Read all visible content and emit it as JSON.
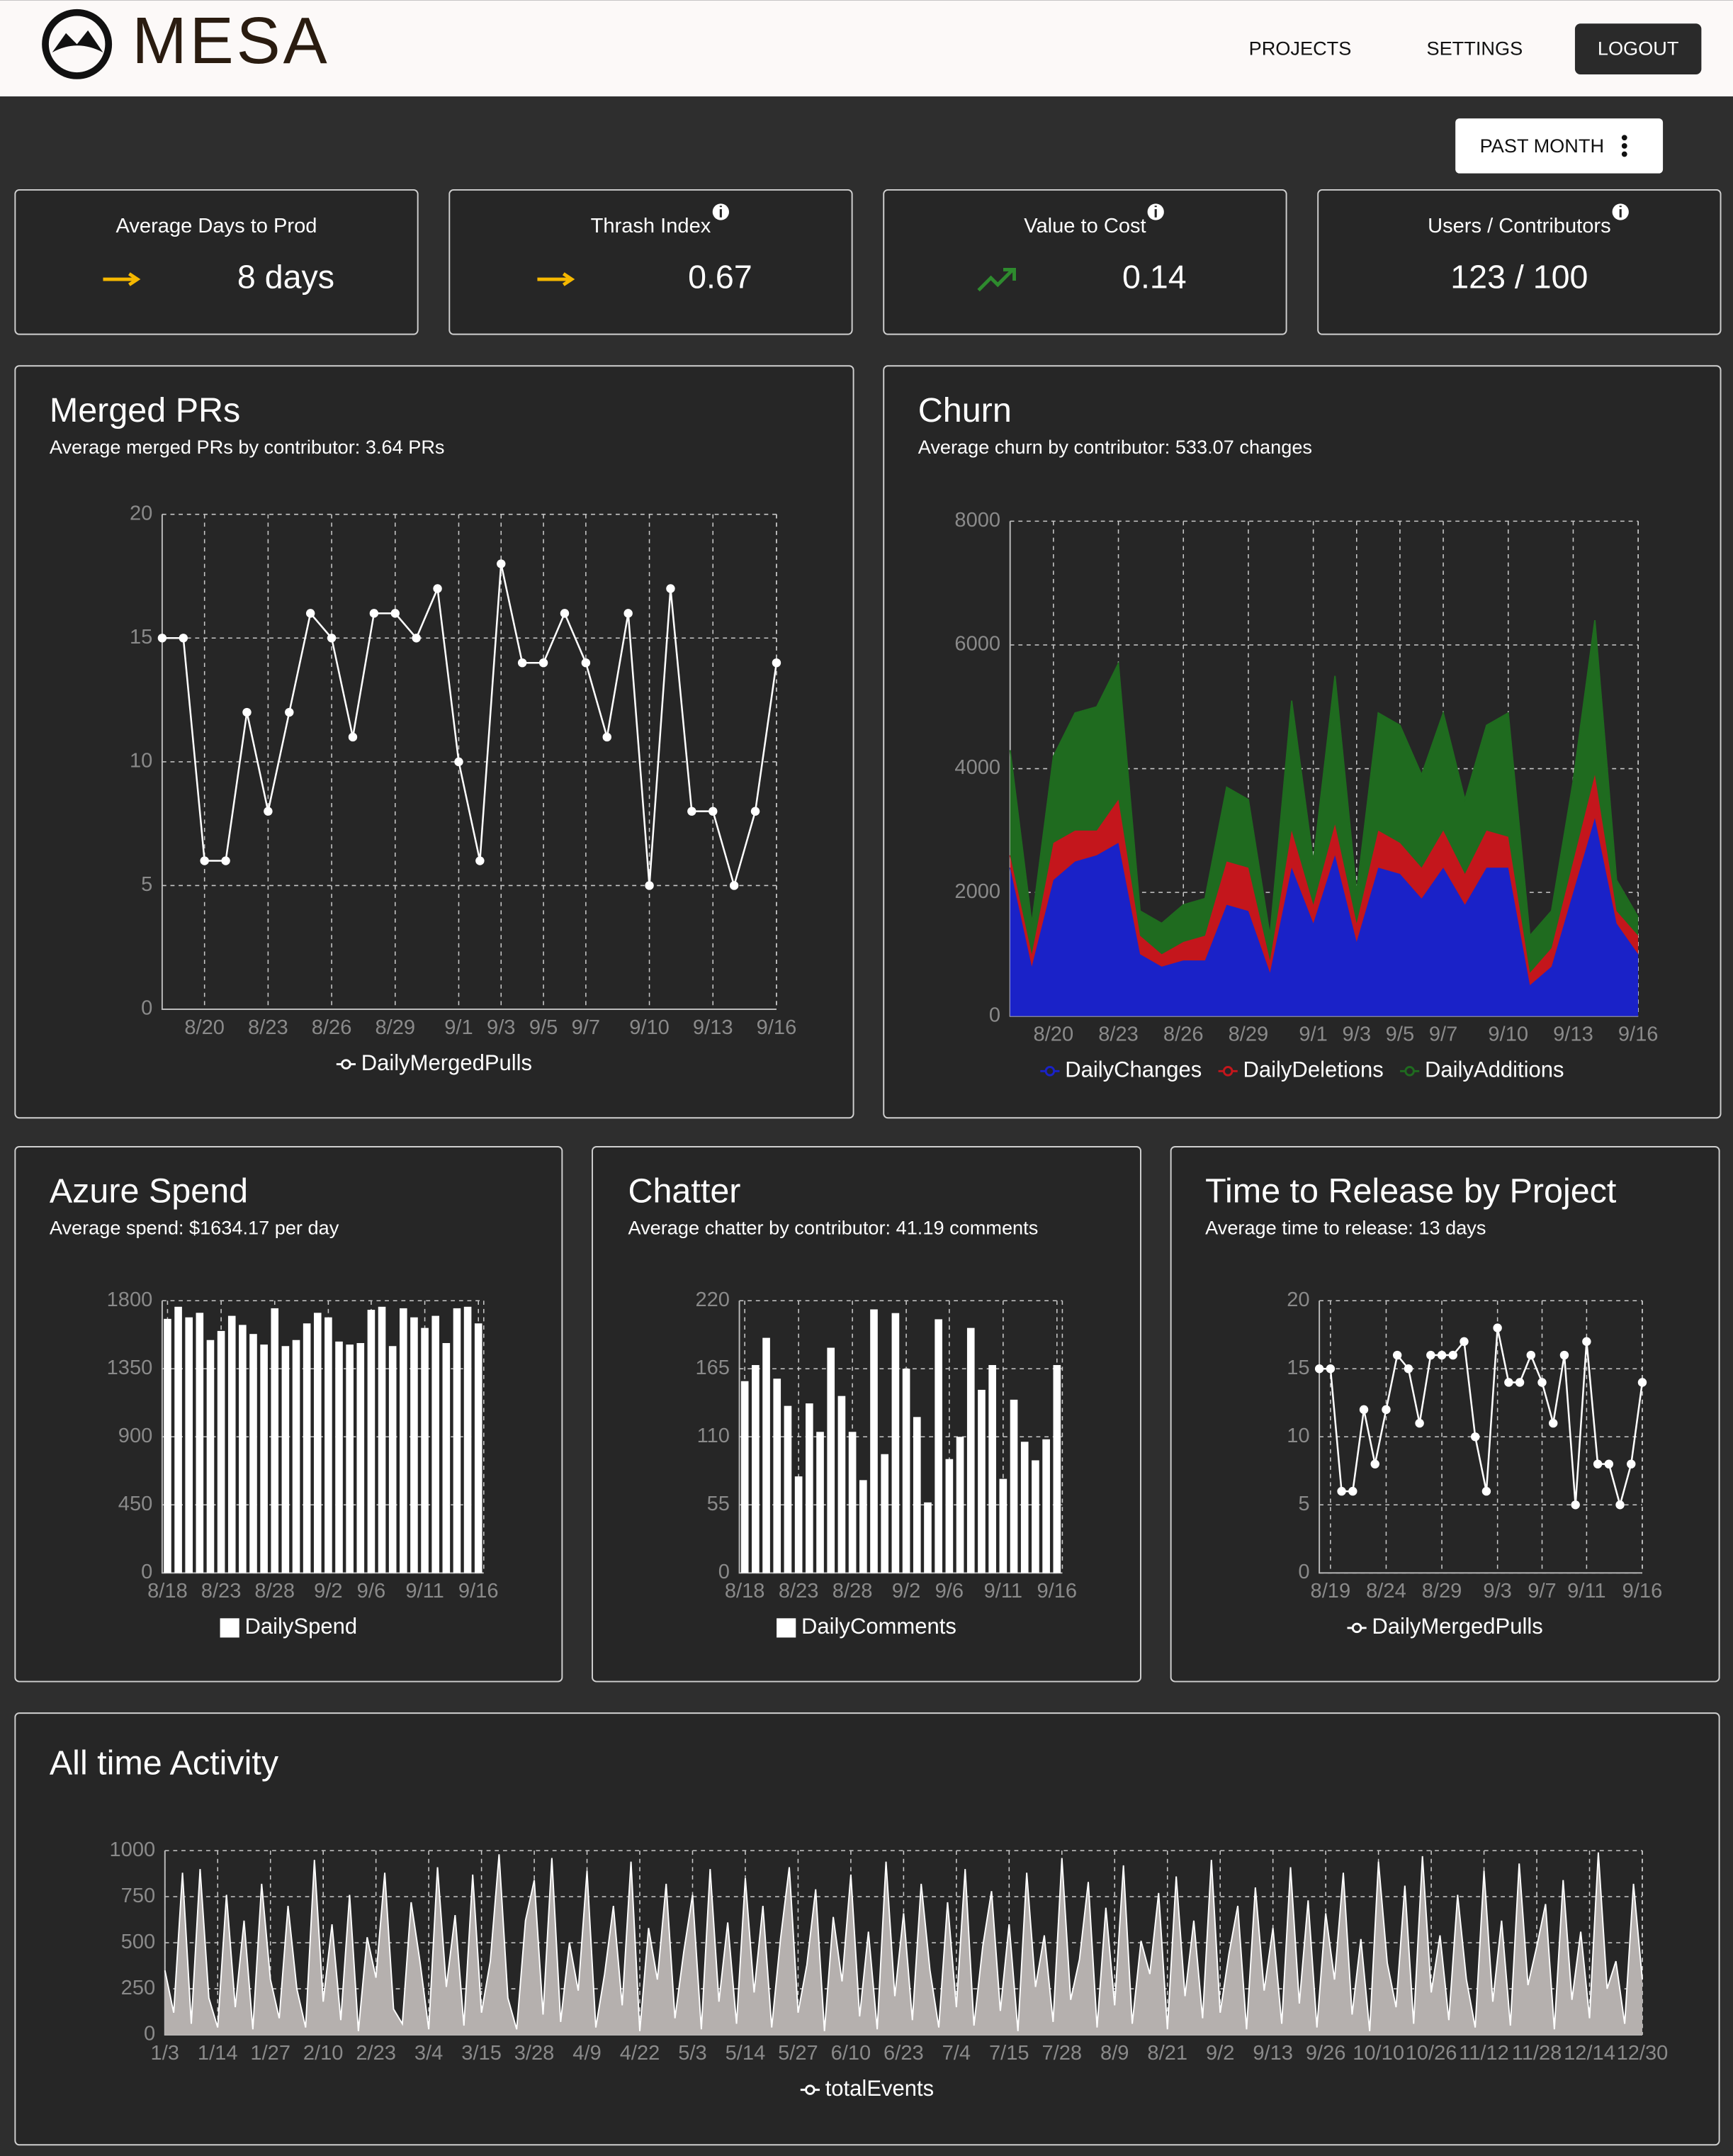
{
  "header": {
    "logo": "MESA",
    "nav": [
      "PROJECTS",
      "SETTINGS",
      "LOGOUT"
    ]
  },
  "filter": "PAST MONTH",
  "kpis": [
    {
      "label": "Average Days to Prod",
      "value": "8 days"
    },
    {
      "label": "Thrash Index",
      "value": "0.67"
    },
    {
      "label": "Value to Cost",
      "value": "0.14"
    },
    {
      "label": "Users / Contributors",
      "value": "123 / 100"
    }
  ],
  "charts": [
    {
      "type": "line",
      "title": "Merged PRs",
      "subtitle": "Average merged PRs by contributor: 3.64 PRs",
      "categories": [
        null,
        null,
        "8/20",
        null,
        null,
        "8/23",
        null,
        null,
        "8/26",
        null,
        null,
        "8/29",
        null,
        null,
        "9/1",
        null,
        "9/3",
        null,
        "9/5",
        null,
        "9/7",
        null,
        null,
        "9/10",
        null,
        null,
        "9/13",
        null,
        null,
        "9/16"
      ],
      "series": [
        {
          "name": "DailyMergedPulls",
          "color": "#ffffff",
          "values": [
            15,
            15,
            6,
            6,
            12,
            8,
            12,
            16,
            15,
            11,
            16,
            16,
            15,
            17,
            10,
            6,
            18,
            14,
            14,
            16,
            14,
            11,
            16,
            5,
            17,
            8,
            8,
            5,
            8,
            14
          ]
        }
      ],
      "ylim": [
        0,
        20
      ],
      "yticks": [
        0,
        5,
        10,
        15,
        20
      ],
      "grid": true
    },
    {
      "type": "area",
      "stacked": true,
      "title": "Churn",
      "subtitle": "Average churn by contributor: 533.07 changes",
      "categories": [
        null,
        null,
        "8/20",
        null,
        null,
        "8/23",
        null,
        null,
        "8/26",
        null,
        null,
        "8/29",
        null,
        null,
        "9/1",
        null,
        "9/3",
        null,
        "9/5",
        null,
        "9/7",
        null,
        null,
        "9/10",
        null,
        null,
        "9/13",
        null,
        null,
        "9/16"
      ],
      "series": [
        {
          "name": "DailyChanges",
          "color": "#1a22c8",
          "values": [
            2400,
            800,
            2200,
            2500,
            2600,
            2800,
            1000,
            800,
            900,
            900,
            1800,
            1700,
            700,
            2400,
            1500,
            2600,
            1200,
            2400,
            2300,
            1900,
            2400,
            1800,
            2400,
            2400,
            500,
            800,
            2000,
            3200,
            1500,
            1000
          ]
        },
        {
          "name": "DailyDeletions",
          "color": "#c4161c",
          "values": [
            200,
            200,
            600,
            500,
            400,
            700,
            300,
            200,
            300,
            400,
            700,
            700,
            200,
            600,
            300,
            500,
            300,
            600,
            500,
            500,
            600,
            500,
            600,
            500,
            200,
            300,
            500,
            700,
            200,
            300
          ]
        },
        {
          "name": "DailyAdditions",
          "color": "#1f6b1f",
          "values": [
            1700,
            500,
            1400,
            1900,
            2000,
            2200,
            400,
            500,
            600,
            600,
            1200,
            1100,
            400,
            2100,
            700,
            2400,
            500,
            1900,
            1900,
            1500,
            1900,
            1200,
            1700,
            2000,
            600,
            600,
            1300,
            2500,
            500,
            300
          ]
        }
      ],
      "ylim": [
        0,
        8000
      ],
      "yticks": [
        0,
        2000,
        4000,
        6000,
        8000
      ],
      "grid": true
    },
    {
      "type": "bar",
      "title": "Azure Spend",
      "subtitle": "Average spend: $1634.17 per day",
      "categories": [
        "8/18",
        null,
        null,
        null,
        null,
        "8/23",
        null,
        null,
        null,
        null,
        "8/28",
        null,
        null,
        null,
        null,
        "9/2",
        null,
        null,
        null,
        "9/6",
        null,
        null,
        null,
        null,
        "9/11",
        null,
        null,
        null,
        null,
        "9/16"
      ],
      "series": [
        {
          "name": "DailySpend",
          "color": "#ffffff",
          "values": [
            1680,
            1760,
            1690,
            1720,
            1540,
            1600,
            1700,
            1640,
            1580,
            1510,
            1750,
            1500,
            1540,
            1650,
            1720,
            1690,
            1530,
            1510,
            1520,
            1740,
            1760,
            1500,
            1750,
            1690,
            1620,
            1700,
            1520,
            1750,
            1760,
            1650
          ]
        }
      ],
      "ylim": [
        0,
        1800
      ],
      "yticks": [
        0,
        450,
        900,
        1350,
        1800
      ],
      "grid": true
    },
    {
      "type": "bar",
      "title": "Chatter",
      "subtitle": "Average chatter by contributor: 41.19 comments",
      "categories": [
        "8/18",
        null,
        null,
        null,
        null,
        "8/23",
        null,
        null,
        null,
        null,
        "8/28",
        null,
        null,
        null,
        null,
        "9/2",
        null,
        null,
        null,
        "9/6",
        null,
        null,
        null,
        null,
        "9/11",
        null,
        null,
        null,
        null,
        "9/16"
      ],
      "series": [
        {
          "name": "DailyComments",
          "color": "#ffffff",
          "values": [
            155,
            168,
            190,
            157,
            135,
            78,
            137,
            114,
            182,
            143,
            114,
            75,
            213,
            96,
            210,
            165,
            126,
            57,
            205,
            92,
            110,
            198,
            148,
            168,
            76,
            140,
            106,
            91,
            108,
            168
          ]
        }
      ],
      "ylim": [
        0,
        220
      ],
      "yticks": [
        0,
        55,
        110,
        165,
        220
      ],
      "grid": true
    },
    {
      "type": "line",
      "title": "Time to Release by Project",
      "subtitle": "Average time to release: 13 days",
      "categories": [
        null,
        "8/19",
        null,
        null,
        null,
        null,
        "8/24",
        null,
        null,
        null,
        null,
        "8/29",
        null,
        null,
        null,
        null,
        "9/3",
        null,
        null,
        null,
        "9/7",
        null,
        null,
        null,
        "9/11",
        null,
        null,
        null,
        null,
        "9/16"
      ],
      "series": [
        {
          "name": "DailyMergedPulls",
          "color": "#ffffff",
          "values": [
            15,
            15,
            6,
            6,
            12,
            8,
            12,
            16,
            15,
            11,
            16,
            16,
            16,
            17,
            10,
            6,
            18,
            14,
            14,
            16,
            14,
            11,
            16,
            5,
            17,
            8,
            8,
            5,
            8,
            14
          ]
        }
      ],
      "ylim": [
        0,
        20
      ],
      "yticks": [
        0,
        5,
        10,
        15,
        20
      ],
      "grid": true
    },
    {
      "type": "area",
      "stacked": false,
      "title": "All time Activity",
      "categories": [
        "1/3",
        null,
        null,
        null,
        null,
        null,
        "1/14",
        null,
        null,
        null,
        null,
        null,
        "1/27",
        null,
        null,
        null,
        null,
        null,
        "2/10",
        null,
        null,
        null,
        null,
        null,
        "2/23",
        null,
        null,
        null,
        null,
        null,
        "3/4",
        null,
        null,
        null,
        null,
        null,
        "3/15",
        null,
        null,
        null,
        null,
        null,
        "3/28",
        null,
        null,
        null,
        null,
        null,
        "4/9",
        null,
        null,
        null,
        null,
        null,
        "4/22",
        null,
        null,
        null,
        null,
        null,
        "5/3",
        null,
        null,
        null,
        null,
        null,
        "5/14",
        null,
        null,
        null,
        null,
        null,
        "5/27",
        null,
        null,
        null,
        null,
        null,
        "6/10",
        null,
        null,
        null,
        null,
        null,
        "6/23",
        null,
        null,
        null,
        null,
        null,
        "7/4",
        null,
        null,
        null,
        null,
        null,
        "7/15",
        null,
        null,
        null,
        null,
        null,
        "7/28",
        null,
        null,
        null,
        null,
        null,
        "8/9",
        null,
        null,
        null,
        null,
        null,
        "8/21",
        null,
        null,
        null,
        null,
        null,
        "9/2",
        null,
        null,
        null,
        null,
        null,
        "9/13",
        null,
        null,
        null,
        null,
        null,
        "9/26",
        null,
        null,
        null,
        null,
        null,
        "10/10",
        null,
        null,
        null,
        null,
        null,
        "10/26",
        null,
        null,
        null,
        null,
        null,
        "11/12",
        null,
        null,
        null,
        null,
        null,
        "11/28",
        null,
        null,
        null,
        null,
        null,
        "12/14",
        null,
        null,
        null,
        null,
        null,
        "12/30"
      ],
      "series": [
        {
          "name": "totalEvents",
          "color": "#b5b0ae",
          "line_color": "#ffffff",
          "values": [
            350,
            120,
            880,
            60,
            900,
            200,
            40,
            760,
            150,
            620,
            30,
            820,
            300,
            90,
            700,
            250,
            40,
            950,
            180,
            600,
            80,
            760,
            20,
            530,
            310,
            880,
            140,
            60,
            720,
            400,
            30,
            910,
            260,
            650,
            50,
            870,
            120,
            400,
            980,
            200,
            30,
            620,
            840,
            110,
            960,
            70,
            500,
            240,
            890,
            40,
            330,
            700,
            160,
            940,
            20,
            580,
            300,
            820,
            90,
            450,
            760,
            30,
            900,
            180,
            610,
            60,
            850,
            230,
            700,
            40,
            520,
            910,
            120,
            380,
            790,
            20,
            640,
            290,
            870,
            100,
            560,
            30,
            940,
            210,
            660,
            80,
            820,
            350,
            40,
            720,
            150,
            900,
            50,
            480,
            780,
            130,
            600,
            20,
            880,
            260,
            540,
            70,
            960,
            190,
            410,
            830,
            40,
            690,
            160,
            920,
            60,
            510,
            330,
            770,
            30,
            860,
            210,
            620,
            90,
            950,
            120,
            440,
            700,
            30,
            800,
            240,
            580,
            60,
            910,
            170,
            730,
            40,
            660,
            300,
            880,
            110,
            520,
            20,
            940,
            390,
            150,
            810,
            60,
            970,
            230,
            540,
            80,
            760,
            300,
            40,
            890,
            180,
            620,
            50,
            930,
            270,
            480,
            710,
            30,
            840,
            190,
            560,
            90,
            990,
            250,
            400,
            60,
            820,
            300
          ]
        }
      ],
      "ylim": [
        0,
        1000
      ],
      "yticks": [
        0,
        250,
        500,
        750,
        1000
      ],
      "grid": true
    }
  ]
}
